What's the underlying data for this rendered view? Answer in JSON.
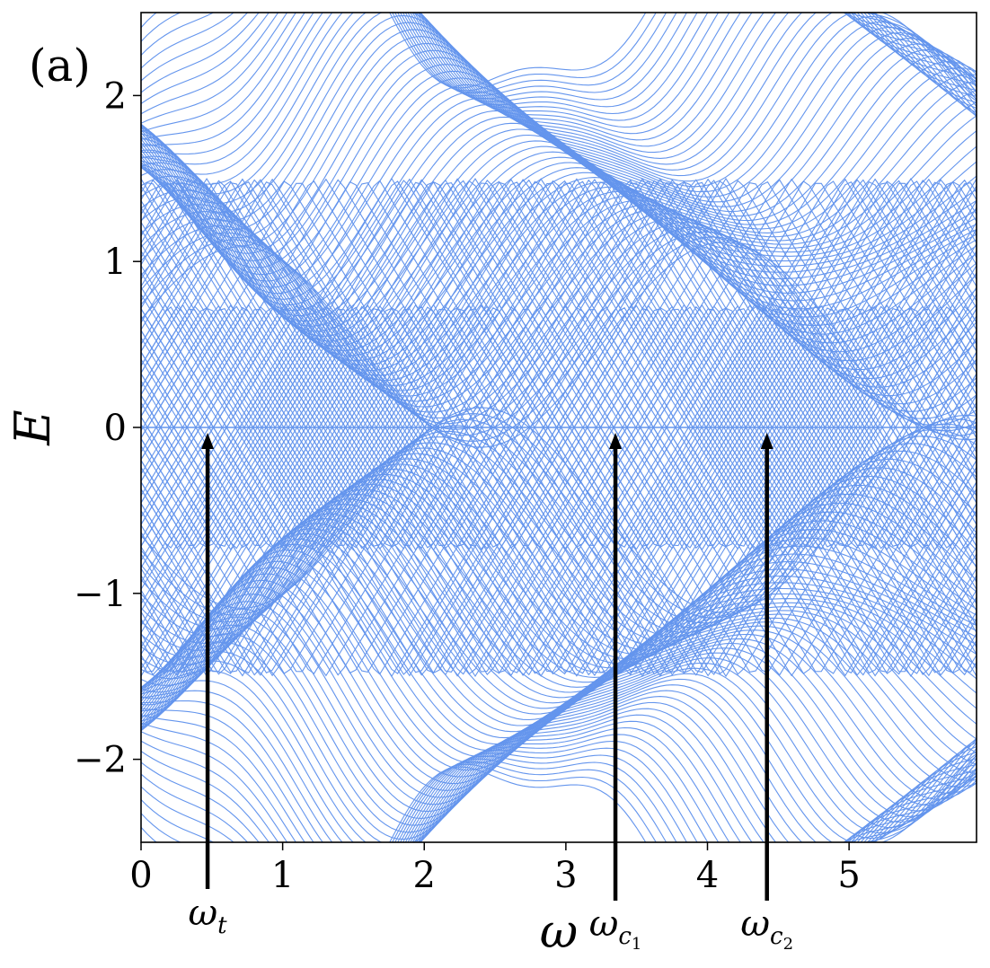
{
  "chart_data": {
    "type": "line",
    "panel_label": "(a)",
    "xlabel": "ω",
    "ylabel": "E",
    "xlim": [
      0,
      5.9
    ],
    "ylim": [
      -2.5,
      2.5
    ],
    "grid": false,
    "line_color": "#6495ED",
    "x_ticks": [
      {
        "value": 0,
        "label": "0"
      },
      {
        "value": 1,
        "label": "1"
      },
      {
        "value": 2,
        "label": "2"
      },
      {
        "value": 3,
        "label": "3"
      },
      {
        "value": 4,
        "label": "4"
      },
      {
        "value": 5,
        "label": "5"
      }
    ],
    "y_ticks": [
      {
        "value": 2,
        "label": "2"
      },
      {
        "value": 1,
        "label": "1"
      },
      {
        "value": 0,
        "label": "0"
      },
      {
        "value": -1,
        "label": "−1"
      },
      {
        "value": -2,
        "label": "−2"
      }
    ],
    "annotations": [
      {
        "name": "omega-t",
        "base": "ω",
        "sub": "t",
        "x": 0.47,
        "y": 0
      },
      {
        "name": "omega-c1",
        "base": "ω",
        "sub": "c",
        "subsub": "1",
        "x": 3.35,
        "y": 0
      },
      {
        "name": "omega-c2",
        "base": "ω",
        "sub": "c",
        "subsub": "2",
        "x": 4.42,
        "y": 0
      }
    ],
    "series": [
      {
        "E0": 0.0,
        "x": [
          0,
          5.9
        ],
        "y": [
          0,
          0
        ]
      }
    ],
    "band_families": [
      {
        "E0": 2.3,
        "slope": 1.0
      },
      {
        "E0": -2.3,
        "slope": -1.0
      },
      {
        "E0": 1.0,
        "slope": 1.0
      },
      {
        "E0": -1.0,
        "slope": -1.0
      }
    ]
  }
}
